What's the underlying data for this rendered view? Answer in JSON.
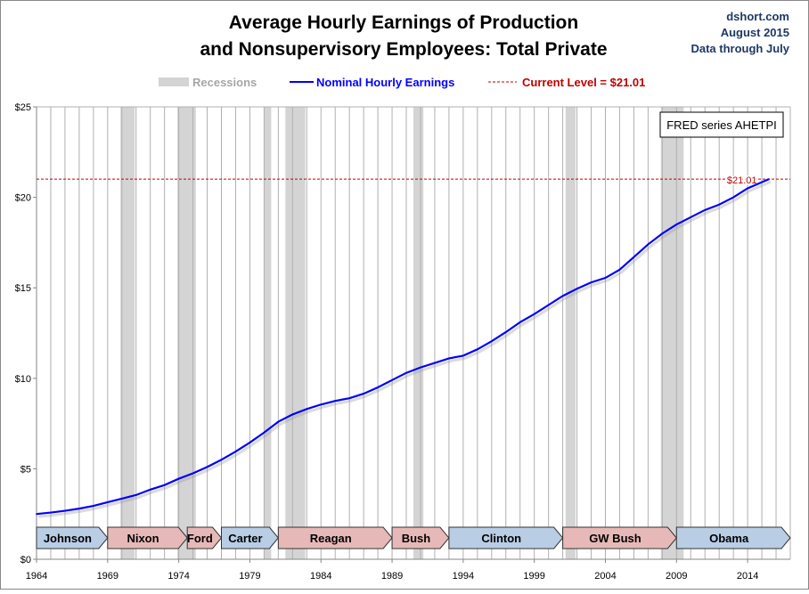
{
  "chart_data": {
    "type": "line",
    "title": "Average Hourly Earnings of Production and Nonsupervisory Employees: Total Private",
    "title_lines": [
      "Average Hourly Earnings of Production",
      "and Nonsupervisory Employees: Total Private"
    ],
    "source_lines": [
      "dshort.com",
      "August 2015",
      "Data through July"
    ],
    "annotation_box": "FRED series AHETPI",
    "legend": {
      "placement": "top",
      "recessions": "Recessions",
      "series": "Nominal Hourly Earnings",
      "current": "Current Level = $21.01"
    },
    "current_level": 21.01,
    "current_label": "$21.01",
    "xlim": [
      1964,
      2017
    ],
    "ylim": [
      0,
      25
    ],
    "x_ticks": [
      "1964",
      "1969",
      "1974",
      "1979",
      "1984",
      "1989",
      "1994",
      "1999",
      "2004",
      "2009",
      "2014"
    ],
    "y_ticks": [
      "$0",
      "$5",
      "$10",
      "$15",
      "$20",
      "$25"
    ],
    "grid": true,
    "colors": {
      "series": "#0000ff",
      "current": "#c00000",
      "recession": "#d4d4d4",
      "democrat": "#b9cde5",
      "republican": "#e6b9b8"
    },
    "series": [
      {
        "name": "Nominal Hourly Earnings",
        "x": [
          1964,
          1965,
          1966,
          1967,
          1968,
          1969,
          1970,
          1971,
          1972,
          1973,
          1974,
          1975,
          1976,
          1977,
          1978,
          1979,
          1980,
          1981,
          1982,
          1983,
          1984,
          1985,
          1986,
          1987,
          1988,
          1989,
          1990,
          1991,
          1992,
          1993,
          1994,
          1995,
          1996,
          1997,
          1998,
          1999,
          2000,
          2001,
          2002,
          2003,
          2004,
          2005,
          2006,
          2007,
          2008,
          2009,
          2010,
          2011,
          2012,
          2013,
          2014,
          2015.5
        ],
        "y": [
          2.5,
          2.58,
          2.68,
          2.8,
          2.95,
          3.15,
          3.35,
          3.55,
          3.85,
          4.1,
          4.45,
          4.75,
          5.1,
          5.5,
          5.95,
          6.45,
          7.0,
          7.6,
          8.0,
          8.3,
          8.55,
          8.75,
          8.9,
          9.15,
          9.5,
          9.9,
          10.3,
          10.6,
          10.85,
          11.1,
          11.25,
          11.6,
          12.05,
          12.55,
          13.1,
          13.55,
          14.05,
          14.55,
          14.95,
          15.3,
          15.55,
          16.0,
          16.7,
          17.4,
          18.0,
          18.5,
          18.9,
          19.3,
          19.6,
          20.0,
          20.5,
          21.01
        ]
      }
    ],
    "recessions": [
      [
        1969.9,
        1970.9
      ],
      [
        1973.9,
        1975.2
      ],
      [
        1980.0,
        1980.5
      ],
      [
        1981.5,
        1982.9
      ],
      [
        1990.5,
        1991.2
      ],
      [
        2001.2,
        2001.9
      ],
      [
        2007.9,
        2009.5
      ]
    ],
    "presidents": [
      {
        "name": "Johnson",
        "start": 1964,
        "end": 1969,
        "party": "D"
      },
      {
        "name": "Nixon",
        "start": 1969,
        "end": 1974.6,
        "party": "R"
      },
      {
        "name": "Ford",
        "start": 1974.6,
        "end": 1977,
        "party": "R"
      },
      {
        "name": "Carter",
        "start": 1977,
        "end": 1981,
        "party": "D"
      },
      {
        "name": "Reagan",
        "start": 1981,
        "end": 1989,
        "party": "R"
      },
      {
        "name": "Bush",
        "start": 1989,
        "end": 1993,
        "party": "R"
      },
      {
        "name": "Clinton",
        "start": 1993,
        "end": 2001,
        "party": "D"
      },
      {
        "name": "GW Bush",
        "start": 2001,
        "end": 2009,
        "party": "R"
      },
      {
        "name": "Obama",
        "start": 2009,
        "end": 2017,
        "party": "D"
      }
    ]
  }
}
